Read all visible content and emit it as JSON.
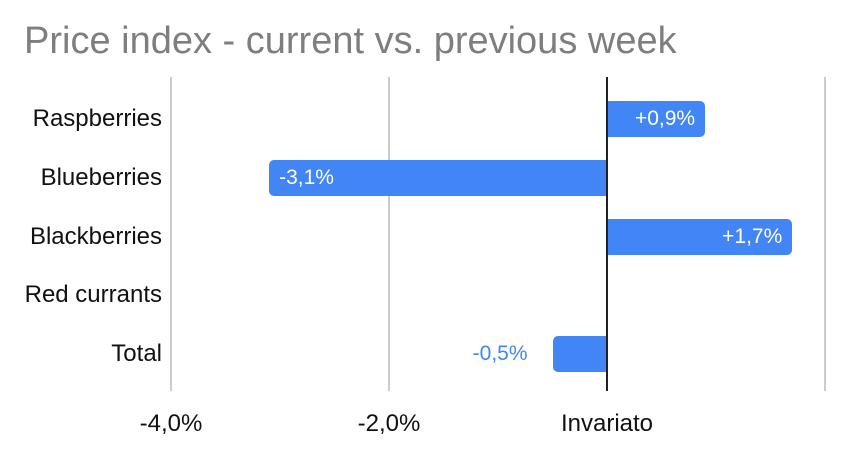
{
  "chart_data": {
    "type": "bar",
    "orientation": "horizontal",
    "title": "Price index - current vs. previous week",
    "xlabel": "",
    "ylabel": "",
    "categories": [
      "Raspberries",
      "Blueberries",
      "Blackberries",
      "Red currants",
      "Total"
    ],
    "values": [
      0.9,
      -3.1,
      1.7,
      0,
      -0.5
    ],
    "bar_labels": [
      "+0,9%",
      "-3,1%",
      "+1,7%",
      "",
      "-0,5%"
    ],
    "bar_label_placements": [
      "inside-end",
      "inside-end",
      "inside-end",
      "none",
      "outside-start"
    ],
    "x_axis": {
      "range": [
        -4,
        2.2
      ],
      "grid": true,
      "zero_line": true,
      "unit": "percent",
      "ticks": [
        {
          "value": -4,
          "label": "-4,0%"
        },
        {
          "value": -2,
          "label": "-2,0%"
        },
        {
          "value": 0,
          "label": "Invariato"
        },
        {
          "value": 2,
          "label": ""
        }
      ]
    },
    "legend": "none",
    "colors": {
      "bar": "#4285f4",
      "inside_label": "#ffffff",
      "outside_label": "#4285f4",
      "title": "#7e7e7e",
      "axis_text": "#111111",
      "gridline": "#cccccc",
      "zero_line": "#212121",
      "background": "#ffffff"
    }
  }
}
